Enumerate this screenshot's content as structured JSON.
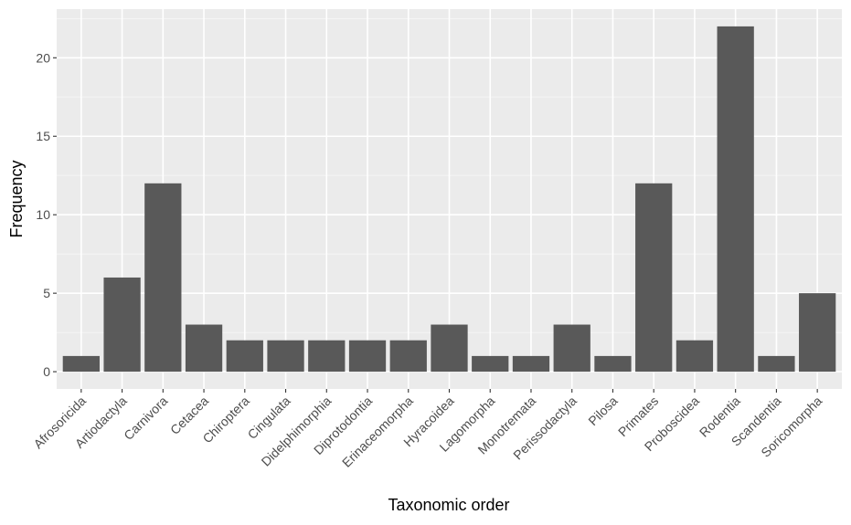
{
  "chart_data": {
    "type": "bar",
    "title": "",
    "xlabel": "Taxonomic order",
    "ylabel": "Frequency",
    "categories": [
      "Afrosoricida",
      "Artiodactyla",
      "Carnivora",
      "Cetacea",
      "Chiroptera",
      "Cingulata",
      "Didelphimorphia",
      "Diprotodontia",
      "Erinaceomorpha",
      "Hyracoidea",
      "Lagomorpha",
      "Monotremata",
      "Perissodactyla",
      "Pilosa",
      "Primates",
      "Proboscidea",
      "Rodentia",
      "Scandentia",
      "Soricomorpha"
    ],
    "values": [
      1,
      6,
      12,
      3,
      2,
      2,
      2,
      2,
      2,
      3,
      1,
      1,
      3,
      1,
      12,
      2,
      22,
      1,
      5
    ],
    "ylim": [
      -1.1,
      23.1
    ],
    "yticks": [
      0,
      5,
      10,
      15,
      20
    ],
    "ytick_labels": [
      "0",
      "5",
      "10",
      "15",
      "20"
    ],
    "grid": true,
    "legend": "none",
    "colors": {
      "panel_background": "#ebebeb",
      "grid_major": "#ffffff",
      "grid_minor": "#f5f5f5",
      "bar_fill": "#595959",
      "tick_mark": "#333333",
      "tick_text": "#4d4d4d",
      "axis_title": "#000000"
    }
  }
}
